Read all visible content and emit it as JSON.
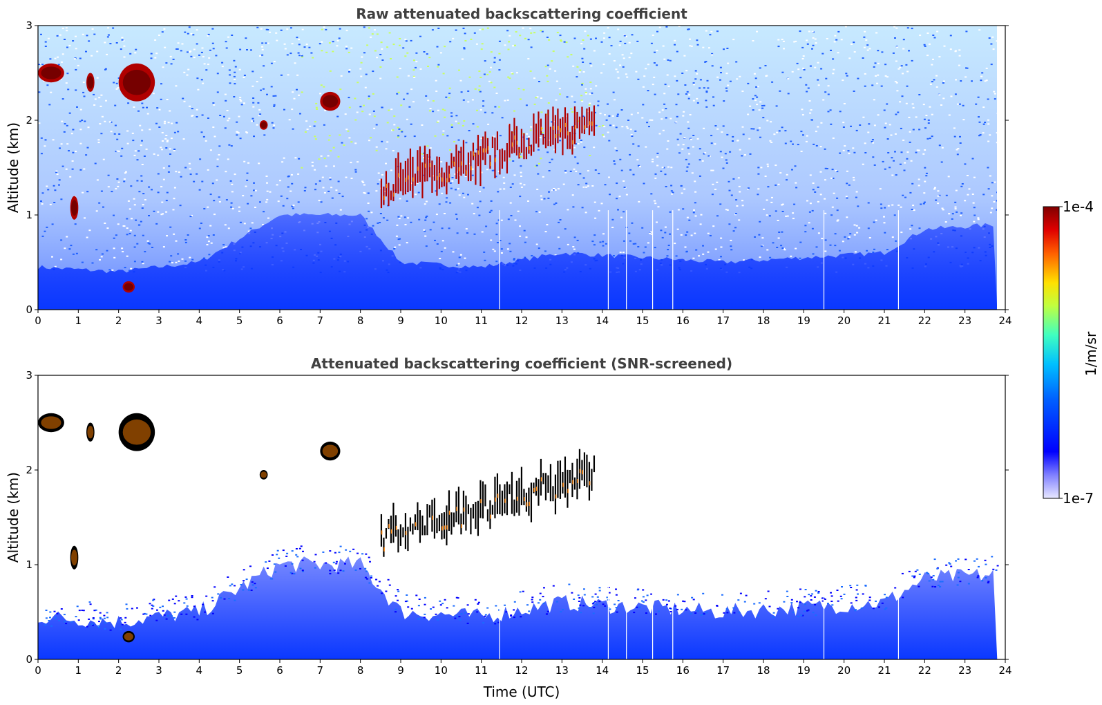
{
  "chart_data": [
    {
      "type": "heatmap",
      "title": "Raw attenuated backscattering coefficient",
      "ylabel": "Altitude (km)",
      "xlabel": "",
      "xlim": [
        0,
        24
      ],
      "ylim": [
        0,
        3
      ],
      "x_ticks": [
        0,
        1,
        2,
        3,
        4,
        5,
        6,
        7,
        8,
        9,
        10,
        11,
        12,
        13,
        14,
        15,
        16,
        17,
        18,
        19,
        20,
        21,
        22,
        23,
        24
      ],
      "y_ticks": [
        0,
        1,
        2,
        3
      ],
      "data_gap_times": [
        11.45,
        14.15,
        14.6,
        15.25,
        15.75,
        19.5,
        21.35
      ],
      "boundary_layer_top_km": [
        [
          0,
          0.45
        ],
        [
          2,
          0.4
        ],
        [
          4,
          0.5
        ],
        [
          6,
          1.0
        ],
        [
          8,
          1.0
        ],
        [
          9,
          0.5
        ],
        [
          11,
          0.45
        ],
        [
          13,
          0.6
        ],
        [
          15,
          0.55
        ],
        [
          17,
          0.5
        ],
        [
          19,
          0.55
        ],
        [
          21,
          0.6
        ],
        [
          22,
          0.85
        ],
        [
          23.8,
          0.9
        ]
      ],
      "cloud_features": [
        {
          "t": [
            0.0,
            0.65
          ],
          "z": [
            2.4,
            2.6
          ]
        },
        {
          "t": [
            1.2,
            1.4
          ],
          "z": [
            2.3,
            2.5
          ]
        },
        {
          "t": [
            2.0,
            2.9
          ],
          "z": [
            2.2,
            2.6
          ]
        },
        {
          "t": [
            0.8,
            1.0
          ],
          "z": [
            0.95,
            1.2
          ]
        },
        {
          "t": [
            2.1,
            2.4
          ],
          "z": [
            0.18,
            0.3
          ]
        },
        {
          "t": [
            5.5,
            5.7
          ],
          "z": [
            1.9,
            2.0
          ]
        },
        {
          "t": [
            7.0,
            7.5
          ],
          "z": [
            2.1,
            2.3
          ]
        },
        {
          "t": [
            8.5,
            13.8
          ],
          "z": [
            1.3,
            2.1
          ]
        }
      ]
    },
    {
      "type": "heatmap",
      "title": "Attenuated backscattering coefficient (SNR-screened)",
      "ylabel": "Altitude (km)",
      "xlabel": "Time (UTC)",
      "xlim": [
        0,
        24
      ],
      "ylim": [
        0,
        3
      ],
      "x_ticks": [
        0,
        1,
        2,
        3,
        4,
        5,
        6,
        7,
        8,
        9,
        10,
        11,
        12,
        13,
        14,
        15,
        16,
        17,
        18,
        19,
        20,
        21,
        22,
        23,
        24
      ],
      "y_ticks": [
        0,
        1,
        2,
        3
      ]
    }
  ],
  "colorbar": {
    "label": "1/m/sr",
    "max_label": "1e-4",
    "min_label": "1e-7",
    "range": [
      1e-07,
      0.0001
    ],
    "scale": "log",
    "colormap": "jet"
  },
  "colors": {
    "background": "#ffffff",
    "title": "#404040",
    "low": "#0000ff",
    "high": "#800000"
  }
}
